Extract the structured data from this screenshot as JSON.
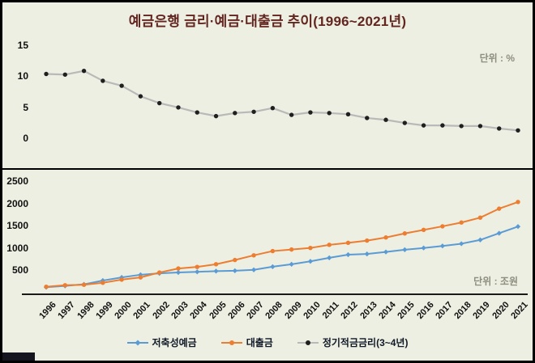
{
  "title": "예금은행 금리·예금·대출금 추이(1996~2021년)",
  "colors": {
    "background": "#ecefe1",
    "title": "#63251f",
    "deposit": "#5b9bd5",
    "loan": "#ed7d31",
    "rate_line": "#b9b9b9",
    "rate_marker": "#1f1f1f",
    "unit_text": "#8e8e80"
  },
  "top_panel": {
    "unit_label": "단위 : %",
    "y_ticks": [
      0,
      5,
      10,
      15
    ],
    "ylim": [
      0,
      15
    ]
  },
  "bottom_panel": {
    "unit_label": "단위 : 조원",
    "y_ticks": [
      500,
      1000,
      1500,
      2000,
      2500
    ],
    "ylim": [
      0,
      2500
    ]
  },
  "legend": [
    {
      "id": "deposits",
      "label": "저축성예금",
      "color": "#5b9bd5",
      "marker": "diamond",
      "marker_color": "#5b9bd5"
    },
    {
      "id": "loans",
      "label": "대출금",
      "color": "#ed7d31",
      "marker": "circle",
      "marker_color": "#ed7d31"
    },
    {
      "id": "rate",
      "label": "정기적금금리(3~4년)",
      "color": "#b9b9b9",
      "marker": "circle",
      "marker_color": "#1f1f1f"
    }
  ],
  "chart_data": [
    {
      "type": "line",
      "panel": "top",
      "name": "정기적금금리(3~4년)",
      "x": [
        1996,
        1997,
        1998,
        1999,
        2000,
        2001,
        2002,
        2003,
        2004,
        2005,
        2006,
        2007,
        2008,
        2009,
        2010,
        2011,
        2012,
        2013,
        2014,
        2015,
        2016,
        2017,
        2018,
        2019,
        2020,
        2021
      ],
      "values": [
        10.5,
        10.4,
        11.0,
        9.4,
        8.6,
        6.9,
        5.8,
        5.1,
        4.3,
        3.7,
        4.2,
        4.4,
        5.0,
        3.9,
        4.3,
        4.2,
        4.0,
        3.4,
        3.1,
        2.6,
        2.2,
        2.2,
        2.1,
        2.1,
        1.7,
        1.4
      ],
      "ylim": [
        0,
        15
      ],
      "ylabel": "단위 : %",
      "grid": false,
      "legend_position": "bottom"
    },
    {
      "type": "line",
      "panel": "bottom",
      "x": [
        1996,
        1997,
        1998,
        1999,
        2000,
        2001,
        2002,
        2003,
        2004,
        2005,
        2006,
        2007,
        2008,
        2009,
        2010,
        2011,
        2012,
        2013,
        2014,
        2015,
        2016,
        2017,
        2018,
        2019,
        2020,
        2021
      ],
      "series": [
        {
          "name": "저축성예금",
          "color": "#5b9bd5",
          "marker": "diamond",
          "values": [
            140,
            170,
            205,
            290,
            360,
            420,
            450,
            470,
            485,
            500,
            510,
            530,
            600,
            655,
            720,
            800,
            870,
            885,
            930,
            980,
            1020,
            1065,
            1115,
            1200,
            1350,
            1500
          ]
        },
        {
          "name": "대출금",
          "color": "#ed7d31",
          "marker": "circle",
          "values": [
            150,
            185,
            195,
            240,
            310,
            360,
            470,
            560,
            595,
            655,
            750,
            855,
            950,
            985,
            1020,
            1090,
            1135,
            1185,
            1255,
            1345,
            1425,
            1505,
            1590,
            1700,
            1900,
            2050
          ]
        }
      ],
      "ylim": [
        0,
        2500
      ],
      "ylabel": "단위 : 조원",
      "grid": false,
      "legend_position": "bottom"
    }
  ]
}
